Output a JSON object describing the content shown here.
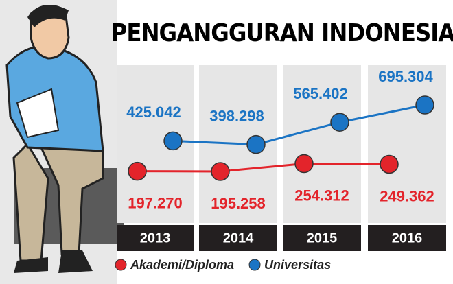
{
  "chart_data": {
    "type": "line",
    "title": "PENGANGGURAN INDONESIA",
    "categories": [
      "2013",
      "2014",
      "2015",
      "2016"
    ],
    "series": [
      {
        "name": "Akademi/Diploma",
        "color": "#e3242b",
        "values": [
          197270,
          195258,
          254312,
          249362
        ],
        "value_labels": [
          "197.270",
          "195.258",
          "254.312",
          "249.362"
        ]
      },
      {
        "name": "Universitas",
        "color": "#1b74c4",
        "values": [
          425042,
          398298,
          565402,
          695304
        ],
        "value_labels": [
          "425.042",
          "398.298",
          "565.402",
          "695.304"
        ]
      }
    ]
  }
}
